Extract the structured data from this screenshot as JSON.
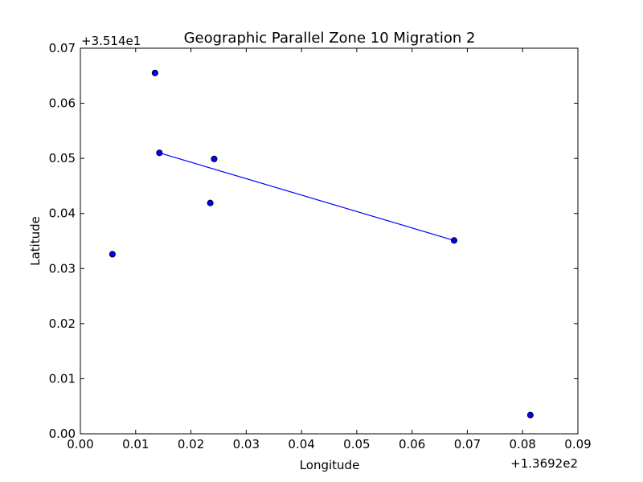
{
  "chart_data": {
    "type": "scatter",
    "title": "Geographic Parallel Zone 10 Migration 2",
    "xlabel": "Longitude",
    "ylabel": "Latitude",
    "x_offset_label": "+1.3692e2",
    "y_offset_label": "+3.514e1",
    "xlim": [
      0.0,
      0.09
    ],
    "ylim": [
      0.0,
      0.07
    ],
    "x_ticks": [
      "0.00",
      "0.01",
      "0.02",
      "0.03",
      "0.04",
      "0.05",
      "0.06",
      "0.07",
      "0.08",
      "0.09"
    ],
    "y_ticks": [
      "0.00",
      "0.01",
      "0.02",
      "0.03",
      "0.04",
      "0.05",
      "0.06",
      "0.07"
    ],
    "grid": false,
    "points": [
      {
        "x": 0.0135,
        "y": 0.0655
      },
      {
        "x": 0.0143,
        "y": 0.051
      },
      {
        "x": 0.0242,
        "y": 0.0499
      },
      {
        "x": 0.0235,
        "y": 0.0419
      },
      {
        "x": 0.0058,
        "y": 0.0326
      },
      {
        "x": 0.0676,
        "y": 0.0351
      },
      {
        "x": 0.0814,
        "y": 0.0034
      }
    ],
    "line": [
      {
        "x": 0.0143,
        "y": 0.051
      },
      {
        "x": 0.0676,
        "y": 0.0351
      }
    ],
    "colors": {
      "marker_fill": "#0000ff",
      "marker_edge": "#000000",
      "line": "#0000ff",
      "axes": "#000000"
    }
  }
}
